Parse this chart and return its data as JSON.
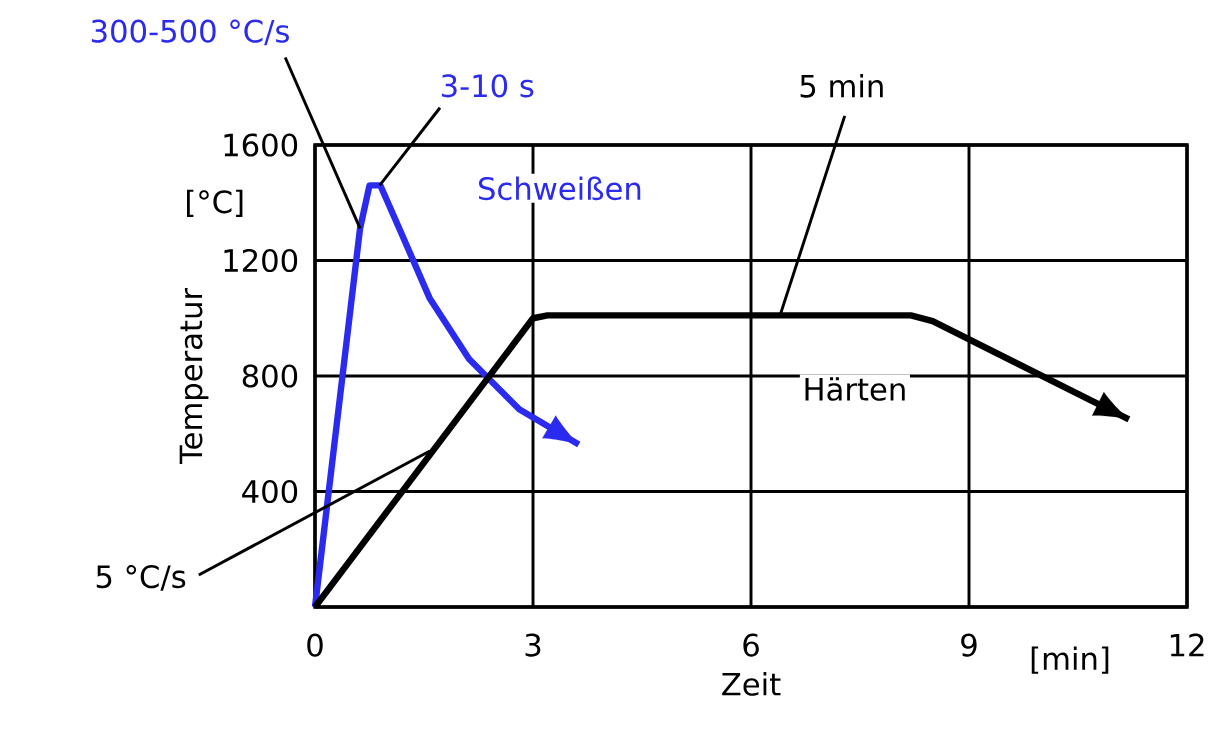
{
  "chart_data": {
    "type": "line",
    "xlabel": "Zeit",
    "ylabel": "Temperatur",
    "xlim": [
      0,
      12
    ],
    "ylim": [
      0,
      1600
    ],
    "xticks": [
      0,
      3,
      6,
      9,
      12
    ],
    "yticks": [
      {
        "value": 0,
        "label": null
      },
      400,
      800,
      1200,
      1600
    ],
    "grid": true,
    "marker": "none",
    "line_style": "solid",
    "series": [
      {
        "name": "Schweißen",
        "color": "#2b2bf0",
        "x": [
          0,
          0.62,
          0.75,
          0.9,
          1.16,
          1.58,
          2.12,
          2.81,
          3.63
        ],
        "values": [
          0,
          1311,
          1460,
          1460,
          1311,
          1068,
          859,
          685,
          563
        ]
      },
      {
        "name": "Härten",
        "color": "#000000",
        "x": [
          0,
          3,
          3.2,
          8.2,
          8.5,
          11.2
        ],
        "values": [
          0,
          1000,
          1010,
          1010,
          990,
          650
        ]
      }
    ],
    "annotations": [
      {
        "text": "300-500 °C/s",
        "x": 0.62,
        "y": 1311
      },
      {
        "text": "3-10 s",
        "x": 0.89,
        "y": 1460
      },
      {
        "text": "5 min",
        "x": 6.4,
        "y": 1010
      },
      {
        "text": "5 °C/s",
        "x": 1.58,
        "y": 540
      },
      "[°C]",
      "[min]"
    ]
  }
}
